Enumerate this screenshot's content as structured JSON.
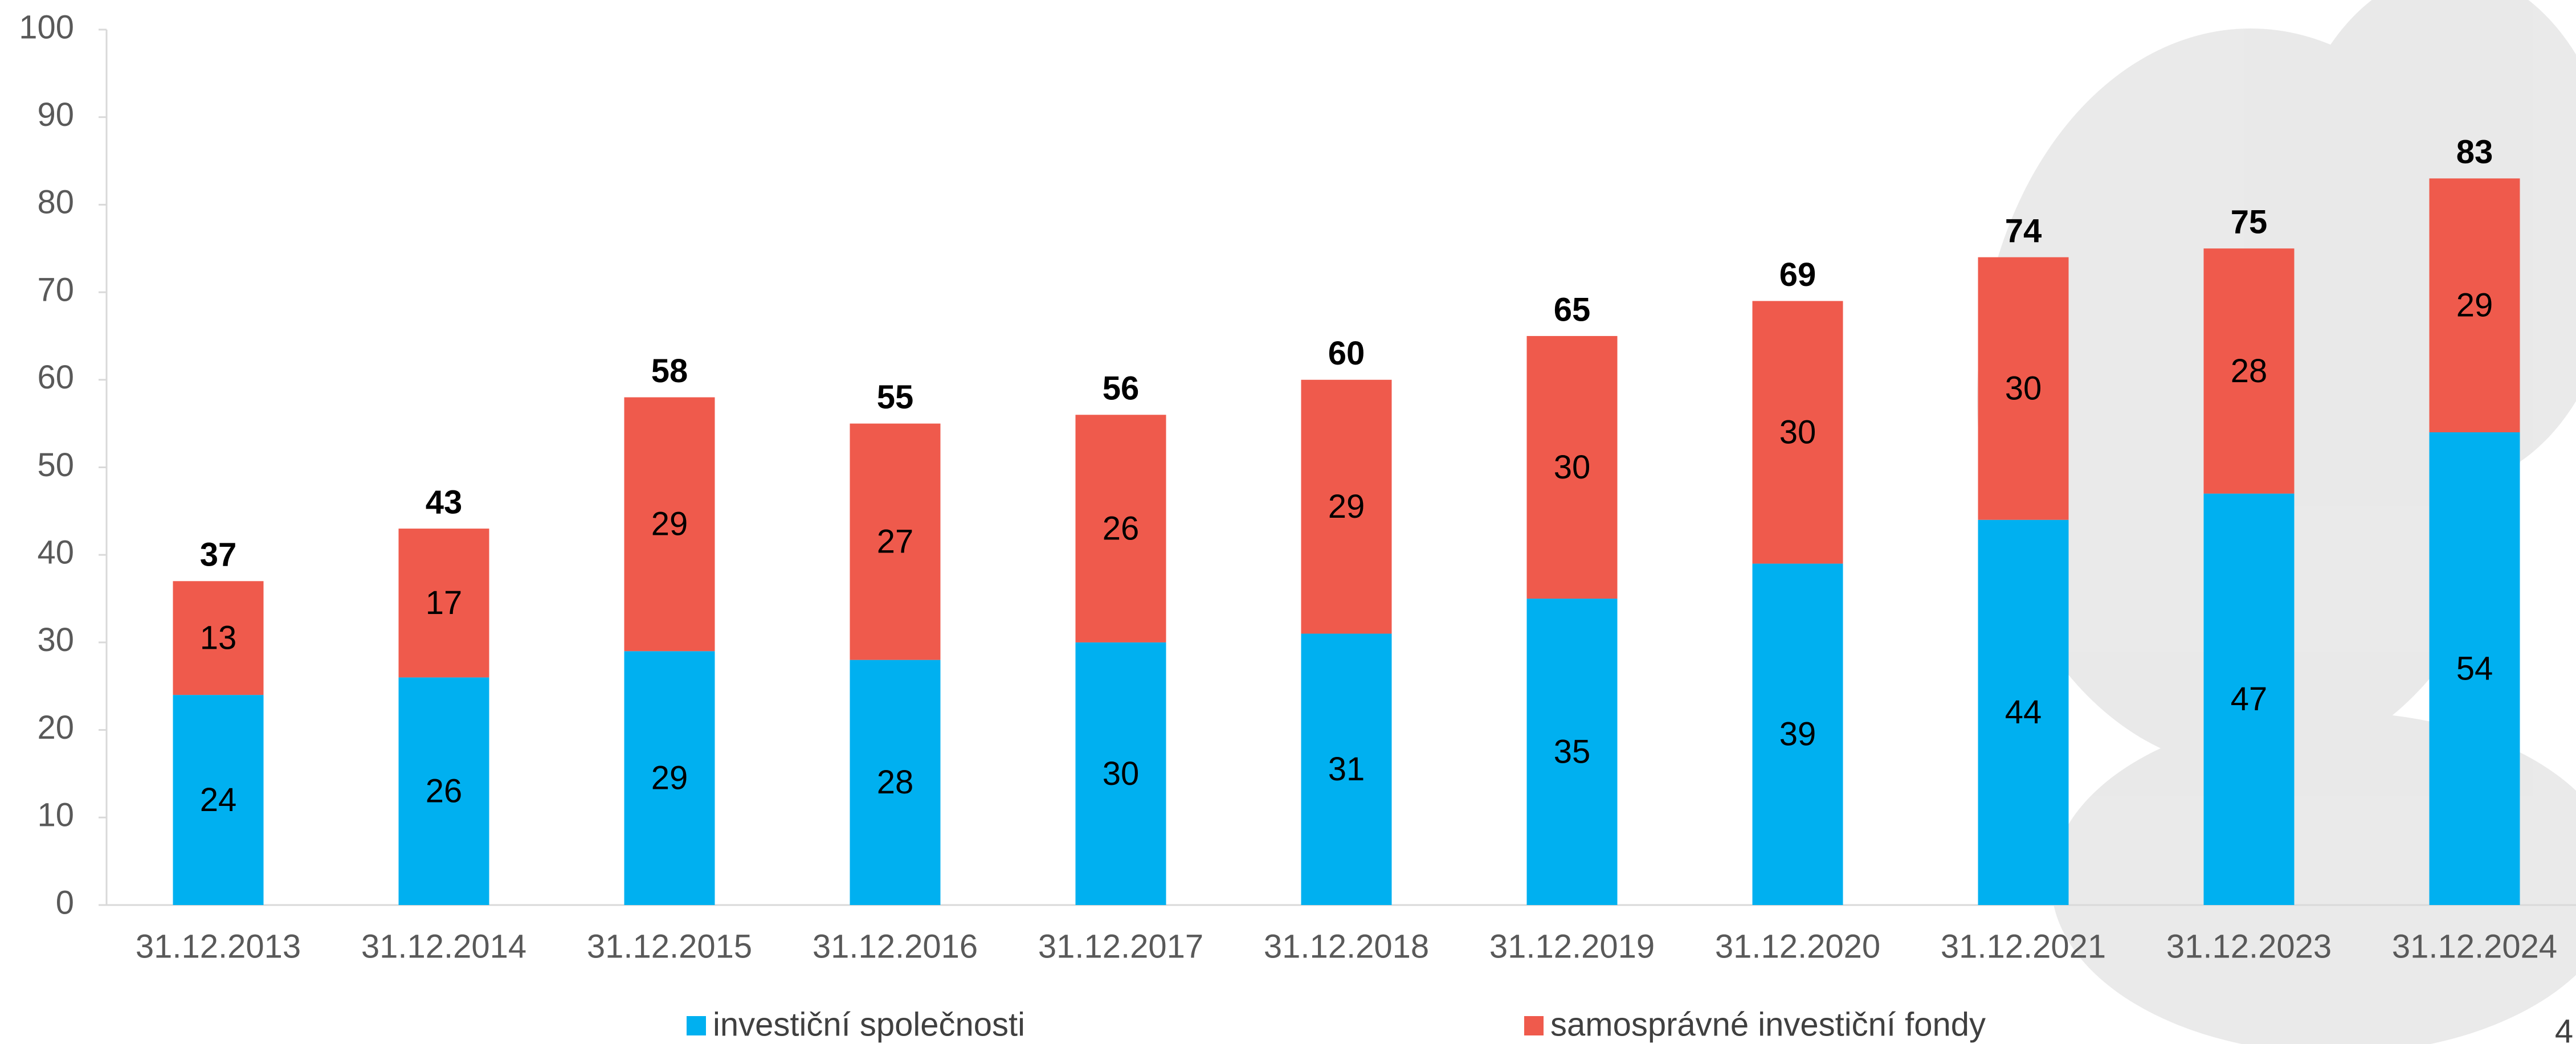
{
  "chart_data": {
    "type": "stacked_bar",
    "categories": [
      "31.12.2013",
      "31.12.2014",
      "31.12.2015",
      "31.12.2016",
      "31.12.2017",
      "31.12.2018",
      "31.12.2019",
      "31.12.2020",
      "31.12.2021",
      "31.12.2023",
      "31.12.2024"
    ],
    "series": [
      {
        "name": "investiční společnosti",
        "color": "#00b0f0",
        "values": [
          24,
          26,
          29,
          28,
          30,
          31,
          35,
          39,
          44,
          47,
          54
        ]
      },
      {
        "name": "samosprávné investiční fondy",
        "color": "#ef5a4c",
        "values": [
          13,
          17,
          29,
          27,
          26,
          29,
          30,
          30,
          30,
          28,
          29
        ]
      }
    ],
    "totals": [
      37,
      43,
      58,
      55,
      56,
      60,
      65,
      69,
      74,
      75,
      83
    ],
    "ylim": [
      0,
      100
    ],
    "yticks": [
      0,
      10,
      20,
      30,
      40,
      50,
      60,
      70,
      80,
      90,
      100
    ],
    "grid": false,
    "legend": "bottom",
    "page_number": "4"
  }
}
